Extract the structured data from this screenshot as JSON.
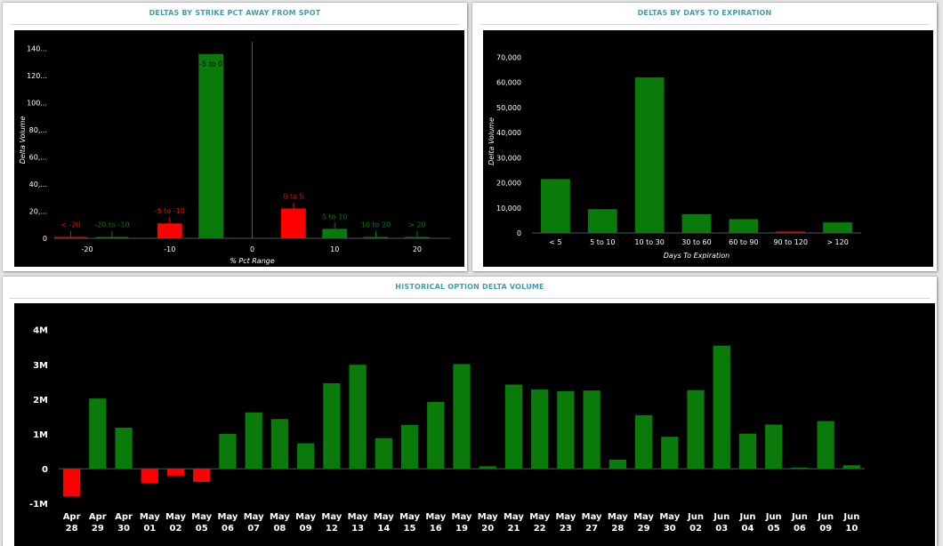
{
  "colors": {
    "positive": "#0a7a0a",
    "negative": "#ff0000",
    "plot_bg": "#000000",
    "title": "#3aa0ad"
  },
  "chart_data": [
    {
      "type": "bar",
      "title": "DELTAS BY STRIKE PCT AWAY FROM SPOT",
      "xlabel": "% Pct Range",
      "ylabel": "Delta Volume",
      "xlim": [
        -24,
        24
      ],
      "ylim": [
        0,
        145
      ],
      "y_ticks": [
        {
          "value": 0,
          "label": "0"
        },
        {
          "value": 20,
          "label": "20,..."
        },
        {
          "value": 40,
          "label": "40,..."
        },
        {
          "value": 60,
          "label": "60,..."
        },
        {
          "value": 80,
          "label": "80,..."
        },
        {
          "value": 100,
          "label": "100..."
        },
        {
          "value": 120,
          "label": "120..."
        },
        {
          "value": 140,
          "label": "140..."
        }
      ],
      "x_ticks": [
        {
          "value": -20,
          "label": "-20"
        },
        {
          "value": -10,
          "label": "-10"
        },
        {
          "value": 0,
          "label": "0"
        },
        {
          "value": 10,
          "label": "10"
        },
        {
          "value": 20,
          "label": "20"
        }
      ],
      "bars": [
        {
          "label": "< -20",
          "x0": -24,
          "x1": -20,
          "value": 0.8,
          "sign": "negative"
        },
        {
          "label": "-20 to -10",
          "x0": -19,
          "x1": -15,
          "value": 0.6,
          "sign": "positive"
        },
        {
          "label": "-5 to -10",
          "x0": -11.5,
          "x1": -8.5,
          "value": 11,
          "sign": "negative"
        },
        {
          "label": "-5 to 0",
          "x0": -6.5,
          "x1": -3.5,
          "value": 136,
          "sign": "positive"
        },
        {
          "label": "0 to 5",
          "x0": 3.5,
          "x1": 6.5,
          "value": 22,
          "sign": "negative"
        },
        {
          "label": "5 to 10",
          "x0": 8.5,
          "x1": 11.5,
          "value": 7,
          "sign": "positive"
        },
        {
          "label": "10 to 20",
          "x0": 13.5,
          "x1": 16.5,
          "value": 0.5,
          "sign": "positive"
        },
        {
          "label": "> 20",
          "x0": 18.5,
          "x1": 21.5,
          "value": 0.5,
          "sign": "positive"
        }
      ]
    },
    {
      "type": "bar",
      "title": "DELTAS BY DAYS TO EXPIRATION",
      "xlabel": "Days To Expiration",
      "ylabel": "Delta Volume",
      "ylim": [
        0,
        73000
      ],
      "y_ticks": [
        {
          "value": 0,
          "label": "0"
        },
        {
          "value": 10000,
          "label": "10,000"
        },
        {
          "value": 20000,
          "label": "20,000"
        },
        {
          "value": 30000,
          "label": "30,000"
        },
        {
          "value": 40000,
          "label": "40,000"
        },
        {
          "value": 50000,
          "label": "50,000"
        },
        {
          "value": 60000,
          "label": "60,000"
        },
        {
          "value": 70000,
          "label": "70,000"
        }
      ],
      "categories": [
        "< 5",
        "5 to 10",
        "10 to 30",
        "30 to 60",
        "60 to 90",
        "90 to 120",
        "> 120"
      ],
      "values": [
        21500,
        9500,
        62000,
        7500,
        5500,
        300,
        4200
      ],
      "signs": [
        "positive",
        "positive",
        "positive",
        "positive",
        "positive",
        "negative",
        "positive"
      ]
    },
    {
      "type": "bar",
      "title": "HISTORICAL OPTION DELTA VOLUME",
      "ylim": [
        -1200000,
        4300000
      ],
      "y_ticks": [
        {
          "value": -1000000,
          "label": "-1M"
        },
        {
          "value": 0,
          "label": "0"
        },
        {
          "value": 1000000,
          "label": "1M"
        },
        {
          "value": 2000000,
          "label": "2M"
        },
        {
          "value": 3000000,
          "label": "3M"
        },
        {
          "value": 4000000,
          "label": "4M"
        }
      ],
      "categories": [
        [
          "Apr",
          "28"
        ],
        [
          "Apr",
          "29"
        ],
        [
          "Apr",
          "30"
        ],
        [
          "May",
          "01"
        ],
        [
          "May",
          "02"
        ],
        [
          "May",
          "05"
        ],
        [
          "May",
          "06"
        ],
        [
          "May",
          "07"
        ],
        [
          "May",
          "08"
        ],
        [
          "May",
          "09"
        ],
        [
          "May",
          "12"
        ],
        [
          "May",
          "13"
        ],
        [
          "May",
          "14"
        ],
        [
          "May",
          "15"
        ],
        [
          "May",
          "16"
        ],
        [
          "May",
          "19"
        ],
        [
          "May",
          "20"
        ],
        [
          "May",
          "21"
        ],
        [
          "May",
          "22"
        ],
        [
          "May",
          "23"
        ],
        [
          "May",
          "27"
        ],
        [
          "May",
          "28"
        ],
        [
          "May",
          "29"
        ],
        [
          "May",
          "30"
        ],
        [
          "Jun",
          "02"
        ],
        [
          "Jun",
          "03"
        ],
        [
          "Jun",
          "04"
        ],
        [
          "Jun",
          "05"
        ],
        [
          "Jun",
          "06"
        ],
        [
          "Jun",
          "09"
        ],
        [
          "Jun",
          "10"
        ]
      ],
      "values": [
        -800000,
        2020000,
        1180000,
        -420000,
        -200000,
        -380000,
        1000000,
        1620000,
        1430000,
        730000,
        2460000,
        2990000,
        880000,
        1260000,
        1920000,
        3010000,
        70000,
        2420000,
        2280000,
        2230000,
        2250000,
        260000,
        1540000,
        920000,
        2260000,
        3540000,
        1010000,
        1270000,
        30000,
        1370000,
        100000
      ]
    }
  ]
}
